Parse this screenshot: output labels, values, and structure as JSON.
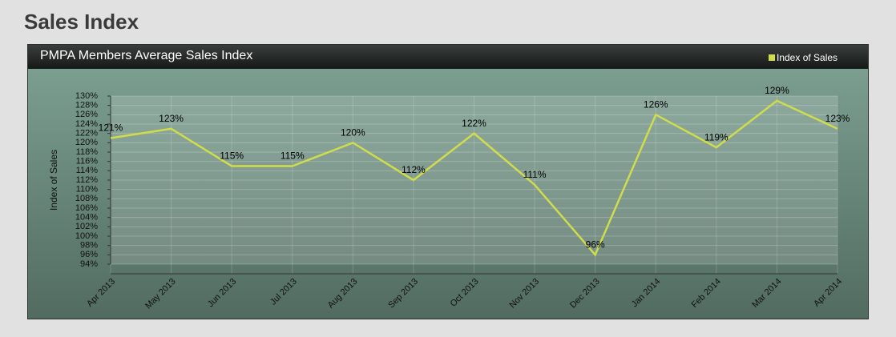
{
  "header": {
    "title": "Sales Index"
  },
  "chart_data": {
    "type": "line",
    "title": "PMPA Members Average Sales Index",
    "y_label": "Index of Sales",
    "categories": [
      "Apr 2013",
      "May 2013",
      "Jun 2013",
      "Jul 2013",
      "Aug 2013",
      "Sep 2013",
      "Oct 2013",
      "Nov 2013",
      "Dec 2013",
      "Jan 2014",
      "Feb 2014",
      "Mar 2014",
      "Apr 2014"
    ],
    "series": [
      {
        "name": "Index of Sales",
        "color": "#cfdc4c",
        "values": [
          121,
          123,
          115,
          115,
          120,
          112,
          122,
          111,
          96,
          126,
          119,
          129,
          123
        ],
        "value_labels": [
          "121%",
          "123%",
          "115%",
          "115%",
          "120%",
          "112%",
          "122%",
          "111%",
          "96%",
          "126%",
          "119%",
          "129%",
          "123%"
        ]
      }
    ],
    "ylim": [
      94,
      130
    ],
    "yticks": [
      {
        "value": 94,
        "label": "94%"
      },
      {
        "value": 96,
        "label": "96%"
      },
      {
        "value": 98,
        "label": "98%"
      },
      {
        "value": 100,
        "label": "100%"
      },
      {
        "value": 102,
        "label": "102%"
      },
      {
        "value": 104,
        "label": "104%"
      },
      {
        "value": 106,
        "label": "106%"
      },
      {
        "value": 108,
        "label": "108%"
      },
      {
        "value": 110,
        "label": "110%"
      },
      {
        "value": 112,
        "label": "112%"
      },
      {
        "value": 114,
        "label": "114%"
      },
      {
        "value": 116,
        "label": "116%"
      },
      {
        "value": 118,
        "label": "118%"
      },
      {
        "value": 120,
        "label": "120%"
      },
      {
        "value": 122,
        "label": "122%"
      },
      {
        "value": 124,
        "label": "124%"
      },
      {
        "value": 126,
        "label": "126%"
      },
      {
        "value": 128,
        "label": "128%"
      },
      {
        "value": 130,
        "label": "130%"
      }
    ],
    "grid": true,
    "legend": "top-right"
  }
}
